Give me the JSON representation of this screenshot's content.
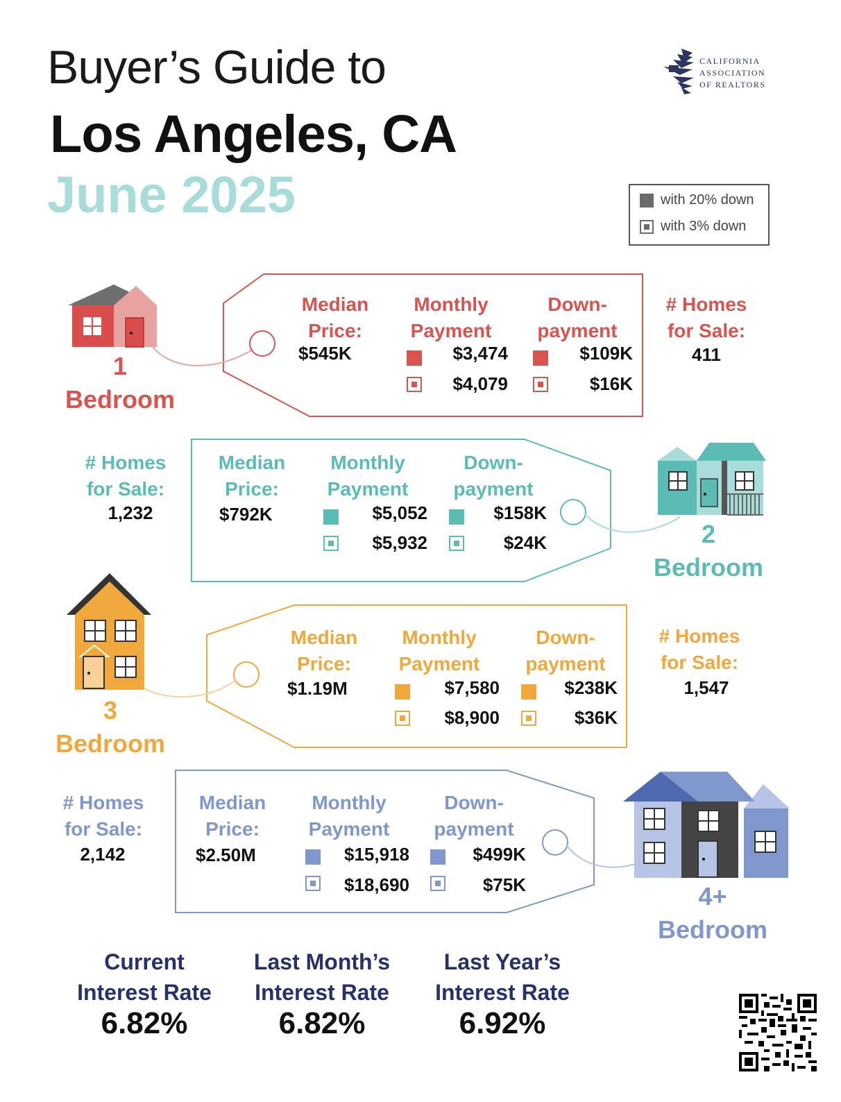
{
  "header": {
    "line1": "Buyer’s Guide to",
    "line2": "Los Angeles, CA",
    "line3": "June 2025"
  },
  "logo": {
    "line1": "CALIFORNIA",
    "line2": "ASSOCIATION",
    "line3": "OF REALTORS"
  },
  "legend": {
    "solid_label": "with 20% down",
    "open_label": "with 3% down"
  },
  "labels": {
    "median": "Median",
    "price": "Price:",
    "monthly": "Monthly",
    "payment": "Payment",
    "down": "Down-",
    "downpayment": "payment",
    "homes": "# Homes",
    "for_sale": "for Sale:",
    "bedroom": "Bedroom"
  },
  "colors": {
    "one": "#d9534f",
    "two": "#5bbcb6",
    "three": "#f0a83c",
    "four": "#7f97cc"
  },
  "sections": [
    {
      "bedrooms": "1",
      "median_price": "$545K",
      "monthly_20": "$3,474",
      "monthly_3": "$4,079",
      "down_20": "$109K",
      "down_3": "$16K",
      "homes_for_sale": "411"
    },
    {
      "bedrooms": "2",
      "median_price": "$792K",
      "monthly_20": "$5,052",
      "monthly_3": "$5,932",
      "down_20": "$158K",
      "down_3": "$24K",
      "homes_for_sale": "1,232"
    },
    {
      "bedrooms": "3",
      "median_price": "$1.19M",
      "monthly_20": "$7,580",
      "monthly_3": "$8,900",
      "down_20": "$238K",
      "down_3": "$36K",
      "homes_for_sale": "1,547"
    },
    {
      "bedrooms": "4+",
      "median_price": "$2.50M",
      "monthly_20": "$15,918",
      "monthly_3": "$18,690",
      "down_20": "$499K",
      "down_3": "$75K",
      "homes_for_sale": "2,142"
    }
  ],
  "rates": [
    {
      "line1": "Current",
      "line2": "Interest Rate",
      "value": "6.82%"
    },
    {
      "line1": "Last Month’s",
      "line2": "Interest Rate",
      "value": "6.82%"
    },
    {
      "line1": "Last Year’s",
      "line2": "Interest Rate",
      "value": "6.92%"
    }
  ]
}
